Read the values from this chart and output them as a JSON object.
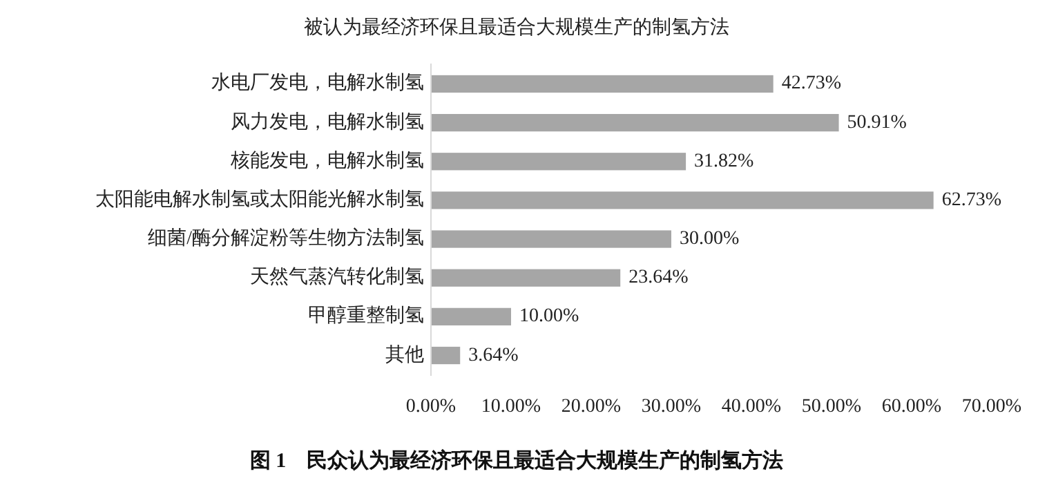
{
  "chart_data": {
    "type": "bar",
    "orientation": "horizontal",
    "title": "被认为最经济环保且最适合大规模生产的制氢方法",
    "categories": [
      "水电厂发电，电解水制氢",
      "风力发电，电解水制氢",
      "核能发电，电解水制氢",
      "太阳能电解水制氢或太阳能光解水制氢",
      "细菌/酶分解淀粉等生物方法制氢",
      "天然气蒸汽转化制氢",
      "甲醇重整制氢",
      "其他"
    ],
    "values": [
      42.73,
      50.91,
      31.82,
      62.73,
      30.0,
      23.64,
      10.0,
      3.64
    ],
    "value_labels": [
      "42.73%",
      "50.91%",
      "31.82%",
      "62.73%",
      "30.00%",
      "23.64%",
      "10.00%",
      "3.64%"
    ],
    "color": "#a6a6a6",
    "xlim": [
      0,
      70
    ],
    "xticks": [
      {
        "value": 0,
        "label": "0.00%"
      },
      {
        "value": 10,
        "label": "10.00%"
      },
      {
        "value": 20,
        "label": "20.00%"
      },
      {
        "value": 30,
        "label": "30.00%"
      },
      {
        "value": 40,
        "label": "40.00%"
      },
      {
        "value": 50,
        "label": "50.00%"
      },
      {
        "value": 60,
        "label": "60.00%"
      },
      {
        "value": 70,
        "label": "70.00%"
      }
    ],
    "grid": false,
    "annotations": [
      "图 1　民众认为最经济环保且最适合大规模生产的制氢方法"
    ]
  }
}
